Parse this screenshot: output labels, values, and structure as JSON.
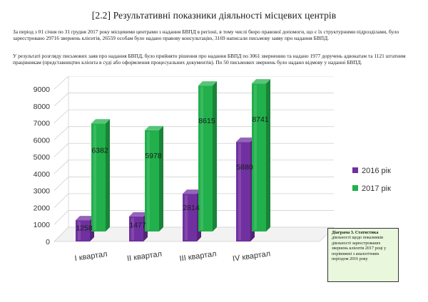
{
  "page": {
    "title": "[2.2] Результативні показники діяльності місцевих центрів",
    "paragraph1": "За період з 01 січня по 31 грудня 2017 року місцевими центрами з надання БВПД в регіоні, в тому числі бюро правової допомоги, що є їх структурними підрозділами, було зареєстровано 29716 звернень клієнтів, 26559 особам було надано правову консультацію, 3169 написали письмову заяву про надання БВПД.",
    "paragraph2": "У результаті розгляду письмових заяв про надання БВПД, було прийнято рішення про надання БВПД по 3061 зверненню та надано 1977 доручень адвокатам та 1121 штатним працівникам (представництво клієнта в суді або оформлення процесуальних документів). По 50 письмових звернень було надано відмову у наданні БВПД.",
    "note_bold": "Діаграма 3. Статистика",
    "note_rest": "діяльності щодо показників діяльності зареєстрованих звернень клієнтів 2017 році у порівнянні з аналогічним періодом 2016 року"
  },
  "chart_data": {
    "type": "bar",
    "categories": [
      "I квартал",
      "II квартал",
      "III квартал",
      "IV квартал"
    ],
    "series": [
      {
        "name": "2016 рік",
        "values": [
          1258,
          1477,
          2814,
          5880
        ],
        "color": "#7030a0"
      },
      {
        "name": "2017 рік",
        "values": [
          6382,
          5978,
          8615,
          8741
        ],
        "color": "#21b04b"
      }
    ],
    "value_labels": [
      [
        "1258",
        "1477",
        "2814",
        "5880"
      ],
      [
        "6382",
        "5978",
        "8615",
        "8741"
      ]
    ],
    "yticks": [
      "0",
      "1000",
      "2000",
      "3000",
      "4000",
      "5000",
      "6000",
      "7000",
      "8000",
      "9000"
    ],
    "ylim": [
      0,
      9000
    ],
    "grid": true,
    "legend": "right",
    "style": "3d-cylinder"
  }
}
